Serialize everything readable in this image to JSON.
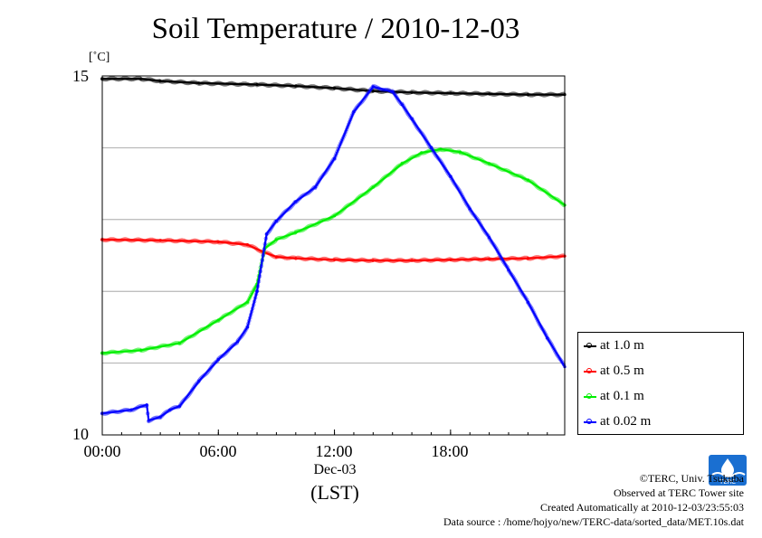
{
  "chart_data": {
    "type": "line",
    "title": "Soil Temperature / 2010-12-03",
    "y_unit_label": "[˚C]",
    "ylim": [
      10,
      15
    ],
    "yticks": [
      "10",
      "15"
    ],
    "ygrid": [
      11,
      12,
      13,
      14
    ],
    "xlim": [
      0,
      23.9
    ],
    "xticks": [
      {
        "value": 0,
        "label": "00:00"
      },
      {
        "value": 6,
        "label": "06:00"
      },
      {
        "value": 12,
        "label": "12:00"
      },
      {
        "value": 18,
        "label": "18:00"
      }
    ],
    "date_label": "Dec-03",
    "xlabel": "(LST)",
    "grid": "horizontal",
    "legend_position": "bottom-right",
    "series": [
      {
        "name": "at 1.0 m",
        "color": "#000000",
        "x": [
          0,
          2,
          3,
          5,
          8,
          10,
          12,
          14,
          16,
          18,
          20,
          22,
          23.9
        ],
        "y": [
          14.96,
          14.96,
          14.93,
          14.9,
          14.88,
          14.86,
          14.83,
          14.79,
          14.77,
          14.76,
          14.75,
          14.74,
          14.74
        ]
      },
      {
        "name": "at 0.5 m",
        "color": "#ff0000",
        "x": [
          0,
          3,
          6,
          7.5,
          8.3,
          9,
          10,
          12,
          14,
          16,
          18,
          20,
          22,
          23.9
        ],
        "y": [
          12.72,
          12.71,
          12.69,
          12.65,
          12.55,
          12.48,
          12.46,
          12.44,
          12.43,
          12.43,
          12.44,
          12.45,
          12.46,
          12.49
        ]
      },
      {
        "name": "at 0.1 m",
        "color": "#00ee00",
        "x": [
          0,
          2,
          4,
          6,
          7.5,
          8,
          8.4,
          9,
          10,
          12,
          14,
          15.5,
          16.5,
          17.5,
          18.5,
          20,
          22,
          23.9
        ],
        "y": [
          11.14,
          11.18,
          11.28,
          11.6,
          11.85,
          12.1,
          12.6,
          12.72,
          12.82,
          13.05,
          13.45,
          13.78,
          13.93,
          13.98,
          13.94,
          13.78,
          13.55,
          13.2
        ]
      },
      {
        "name": "at 0.02 m",
        "color": "#0000ff",
        "x": [
          0,
          1.5,
          2.3,
          2.4,
          3,
          3.5,
          4,
          5,
          6,
          7,
          7.5,
          8,
          8.5,
          9,
          10,
          11,
          12,
          13,
          14,
          15,
          15.5,
          16,
          17,
          18,
          19,
          20,
          21,
          22,
          23,
          23.9
        ],
        "y": [
          10.3,
          10.35,
          10.42,
          10.2,
          10.25,
          10.35,
          10.4,
          10.75,
          11.05,
          11.3,
          11.5,
          12.0,
          12.8,
          12.98,
          13.25,
          13.45,
          13.85,
          14.5,
          14.85,
          14.78,
          14.6,
          14.4,
          14.0,
          13.6,
          13.15,
          12.75,
          12.3,
          11.85,
          11.35,
          10.95
        ]
      }
    ]
  },
  "credits": {
    "copyright": "©TERC, Univ. Tsukuba",
    "observed": "Observed at TERC Tower site",
    "created": "Created Automatically at 2010-12-03/23:55:03",
    "source": "Data source : /home/hojyo/new/TERC-data/sorted_data/MET.10s.dat"
  },
  "logo": {
    "text": "TERC",
    "color": "#1a6fd1"
  }
}
